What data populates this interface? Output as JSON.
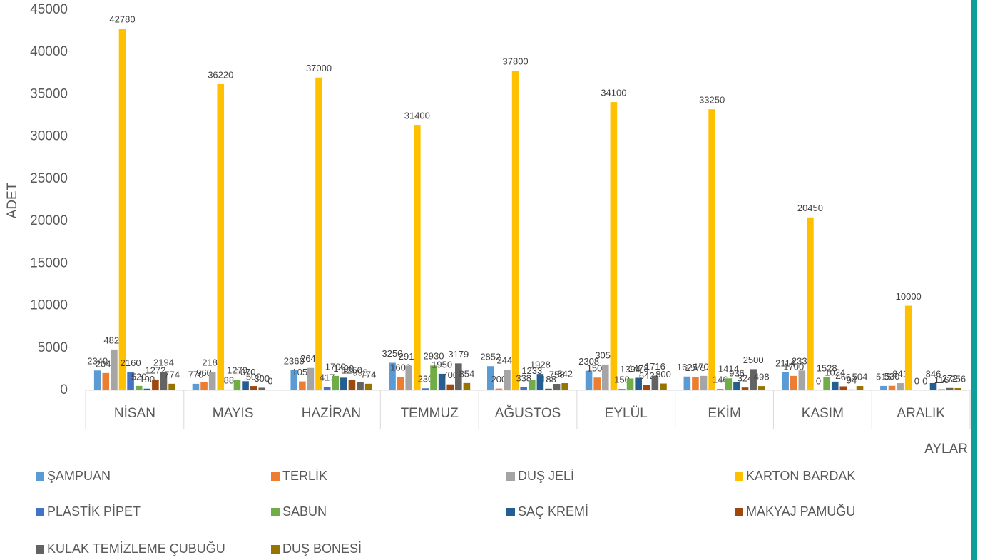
{
  "chart_data": {
    "type": "bar",
    "y_label": "ADET",
    "x_label": "AYLAR",
    "categories": [
      "NİSAN",
      "MAYIS",
      "HAZİRAN",
      "TEMMUZ",
      "AĞUSTOS",
      "EYLÜL",
      "EKİM",
      "KASIM",
      "ARALIK"
    ],
    "series": [
      {
        "name": "ŞAMPUAN",
        "color": "#5B9BD5",
        "values": [
          2340,
          770,
          2360,
          3250,
          2852,
          2308,
          1625,
          2114,
          515
        ]
      },
      {
        "name": "TERLİK",
        "color": "#ED7D31",
        "values": [
          2040,
          960,
          1050,
          1600,
          200,
          1500,
          1575,
          1700,
          530
        ]
      },
      {
        "name": "DUŞ JELİ",
        "color": "#A5A5A5",
        "values": [
          4820,
          2180,
          2640,
          2918,
          2448,
          3050,
          1702,
          2339,
          841
        ]
      },
      {
        "name": "KARTON BARDAK",
        "color": "#FFC000",
        "values": [
          42780,
          36220,
          37000,
          31400,
          37800,
          34100,
          33250,
          20450,
          10000
        ]
      },
      {
        "name": "PLASTİK PİPET",
        "color": "#4472C4",
        "values": [
          2160,
          88,
          417,
          230,
          338,
          150,
          146,
          0,
          0
        ]
      },
      {
        "name": "SABUN",
        "color": "#70AD47",
        "values": [
          520,
          1270,
          1700,
          2930,
          1233,
          1394,
          1414,
          1528,
          0
        ]
      },
      {
        "name": "SAÇ KREMİ",
        "color": "#255E91",
        "values": [
          190,
          1070,
          1490,
          1950,
          1928,
          1478,
          936,
          1024,
          846
        ]
      },
      {
        "name": "MAKYAJ PAMUĞU",
        "color": "#9E480E",
        "values": [
          1272,
          500,
          1250,
          700,
          188,
          642,
          324,
          466,
          116
        ]
      },
      {
        "name": "KULAK TEMİZLEME ÇUBUĞU",
        "color": "#636363",
        "values": [
          2194,
          300,
          998,
          3179,
          758,
          1716,
          2500,
          94,
          272
        ]
      },
      {
        "name": "DUŞ BONESİ",
        "color": "#997300",
        "values": [
          774,
          0,
          774,
          854,
          842,
          800,
          498,
          504,
          256
        ]
      }
    ],
    "ylim": [
      0,
      45000
    ],
    "yticks": [
      0,
      5000,
      10000,
      15000,
      20000,
      25000,
      30000,
      35000,
      40000,
      45000
    ],
    "grid": false
  }
}
